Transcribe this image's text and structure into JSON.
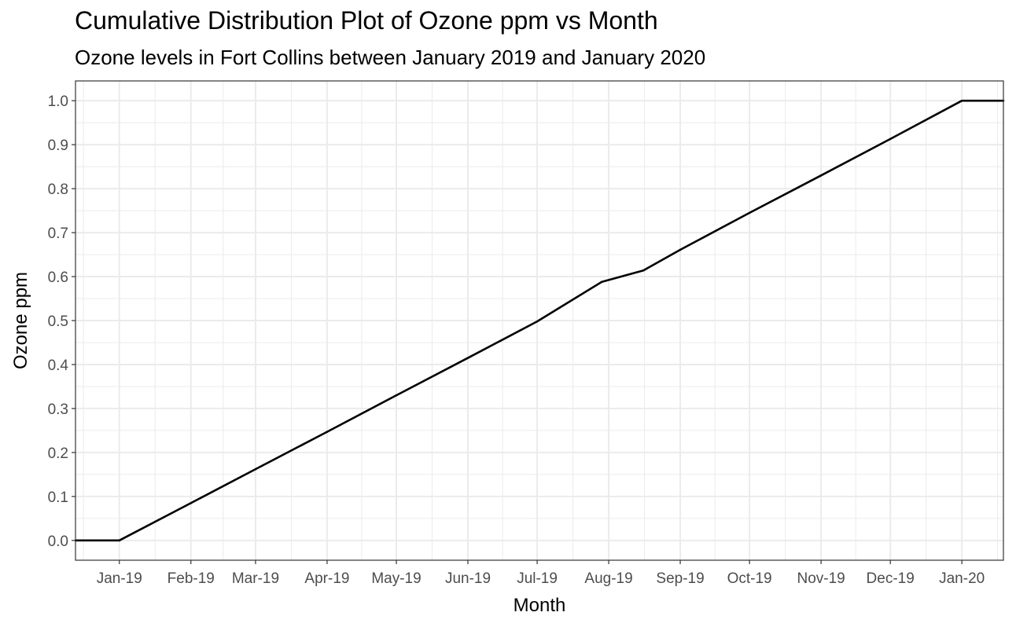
{
  "chart_data": {
    "type": "line",
    "title": "Cumulative Distribution Plot of Ozone ppm vs Month",
    "subtitle": "Ozone levels in Fort Collins between January 2019 and January 2020",
    "xlabel": "Month",
    "ylabel": "Ozone ppm",
    "x_scale": "date",
    "xlim": [
      "2018-12-13",
      "2020-01-19"
    ],
    "ylim": [
      -0.045,
      1.045
    ],
    "grid": true,
    "legend": "none",
    "x_ticks": [
      {
        "date": "2019-01-01",
        "label": "Jan-19"
      },
      {
        "date": "2019-02-01",
        "label": "Feb-19"
      },
      {
        "date": "2019-03-01",
        "label": "Mar-19"
      },
      {
        "date": "2019-04-01",
        "label": "Apr-19"
      },
      {
        "date": "2019-05-01",
        "label": "May-19"
      },
      {
        "date": "2019-06-01",
        "label": "Jun-19"
      },
      {
        "date": "2019-07-01",
        "label": "Jul-19"
      },
      {
        "date": "2019-08-01",
        "label": "Aug-19"
      },
      {
        "date": "2019-09-01",
        "label": "Sep-19"
      },
      {
        "date": "2019-10-01",
        "label": "Oct-19"
      },
      {
        "date": "2019-11-01",
        "label": "Nov-19"
      },
      {
        "date": "2019-12-01",
        "label": "Dec-19"
      },
      {
        "date": "2020-01-01",
        "label": "Jan-20"
      }
    ],
    "y_ticks": [
      "0.0",
      "0.1",
      "0.2",
      "0.3",
      "0.4",
      "0.5",
      "0.6",
      "0.7",
      "0.8",
      "0.9",
      "1.0"
    ],
    "series": [
      {
        "color": "#000000",
        "points": [
          {
            "x": "2018-12-13",
            "y": 0.0
          },
          {
            "x": "2019-01-01",
            "y": 0.0
          },
          {
            "x": "2019-02-01",
            "y": 0.085
          },
          {
            "x": "2019-03-01",
            "y": 0.162
          },
          {
            "x": "2019-04-01",
            "y": 0.247
          },
          {
            "x": "2019-05-01",
            "y": 0.33
          },
          {
            "x": "2019-06-01",
            "y": 0.415
          },
          {
            "x": "2019-07-01",
            "y": 0.498
          },
          {
            "x": "2019-07-29",
            "y": 0.588
          },
          {
            "x": "2019-08-16",
            "y": 0.614
          },
          {
            "x": "2019-09-01",
            "y": 0.661
          },
          {
            "x": "2019-10-01",
            "y": 0.745
          },
          {
            "x": "2019-11-01",
            "y": 0.83
          },
          {
            "x": "2019-12-01",
            "y": 0.913
          },
          {
            "x": "2020-01-01",
            "y": 1.0
          },
          {
            "x": "2020-01-19",
            "y": 1.0
          }
        ]
      }
    ]
  }
}
